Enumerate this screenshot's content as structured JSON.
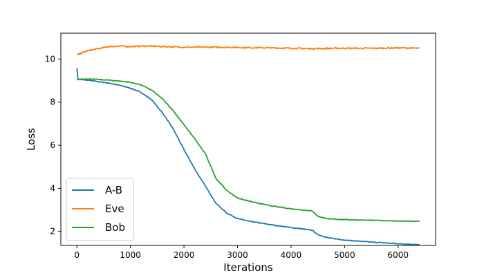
{
  "chart_data": {
    "type": "line",
    "title": "",
    "xlabel": "Iterations",
    "ylabel": "Loss",
    "xlim": [
      -300,
      6700
    ],
    "ylim": [
      1.35,
      11.2
    ],
    "xticks": [
      0,
      1000,
      2000,
      3000,
      4000,
      5000,
      6000
    ],
    "yticks": [
      2,
      4,
      6,
      8,
      10
    ],
    "grid": false,
    "legend_position": "lower-left",
    "series": [
      {
        "name": "A-B",
        "color": "#1f77b4",
        "points": [
          [
            0,
            9.6
          ],
          [
            20,
            9.05
          ],
          [
            200,
            9.02
          ],
          [
            400,
            8.95
          ],
          [
            600,
            8.88
          ],
          [
            800,
            8.78
          ],
          [
            1000,
            8.65
          ],
          [
            1200,
            8.45
          ],
          [
            1400,
            8.1
          ],
          [
            1600,
            7.5
          ],
          [
            1800,
            6.75
          ],
          [
            2000,
            5.8
          ],
          [
            2200,
            4.9
          ],
          [
            2400,
            4.1
          ],
          [
            2600,
            3.3
          ],
          [
            2800,
            2.85
          ],
          [
            3000,
            2.6
          ],
          [
            3200,
            2.48
          ],
          [
            3400,
            2.4
          ],
          [
            3600,
            2.32
          ],
          [
            3800,
            2.25
          ],
          [
            4000,
            2.18
          ],
          [
            4200,
            2.12
          ],
          [
            4400,
            2.05
          ],
          [
            4500,
            1.85
          ],
          [
            4700,
            1.7
          ],
          [
            5000,
            1.6
          ],
          [
            5400,
            1.52
          ],
          [
            5800,
            1.46
          ],
          [
            6000,
            1.43
          ],
          [
            6200,
            1.41
          ],
          [
            6400,
            1.38
          ]
        ]
      },
      {
        "name": "Eve",
        "color": "#ff7f0e",
        "points": [
          [
            0,
            10.18
          ],
          [
            100,
            10.3
          ],
          [
            200,
            10.38
          ],
          [
            400,
            10.48
          ],
          [
            600,
            10.58
          ],
          [
            800,
            10.6
          ],
          [
            1000,
            10.58
          ],
          [
            1200,
            10.6
          ],
          [
            1400,
            10.6
          ],
          [
            1600,
            10.58
          ],
          [
            2000,
            10.55
          ],
          [
            2400,
            10.55
          ],
          [
            2800,
            10.55
          ],
          [
            3200,
            10.53
          ],
          [
            3600,
            10.52
          ],
          [
            4000,
            10.5
          ],
          [
            4400,
            10.48
          ],
          [
            4800,
            10.5
          ],
          [
            5200,
            10.5
          ],
          [
            5600,
            10.5
          ],
          [
            6000,
            10.52
          ],
          [
            6400,
            10.5
          ]
        ]
      },
      {
        "name": "Bob",
        "color": "#2ca02c",
        "points": [
          [
            0,
            9.05
          ],
          [
            200,
            9.08
          ],
          [
            400,
            9.05
          ],
          [
            600,
            9.02
          ],
          [
            800,
            8.98
          ],
          [
            1000,
            8.92
          ],
          [
            1200,
            8.8
          ],
          [
            1400,
            8.55
          ],
          [
            1600,
            8.15
          ],
          [
            1800,
            7.6
          ],
          [
            2000,
            6.95
          ],
          [
            2200,
            6.3
          ],
          [
            2400,
            5.6
          ],
          [
            2600,
            4.45
          ],
          [
            2800,
            3.9
          ],
          [
            3000,
            3.55
          ],
          [
            3200,
            3.42
          ],
          [
            3400,
            3.3
          ],
          [
            3600,
            3.2
          ],
          [
            3800,
            3.12
          ],
          [
            4000,
            3.05
          ],
          [
            4200,
            3.0
          ],
          [
            4400,
            2.95
          ],
          [
            4500,
            2.7
          ],
          [
            4700,
            2.58
          ],
          [
            5000,
            2.55
          ],
          [
            5400,
            2.52
          ],
          [
            5800,
            2.5
          ],
          [
            6000,
            2.48
          ],
          [
            6400,
            2.47
          ]
        ]
      }
    ]
  }
}
